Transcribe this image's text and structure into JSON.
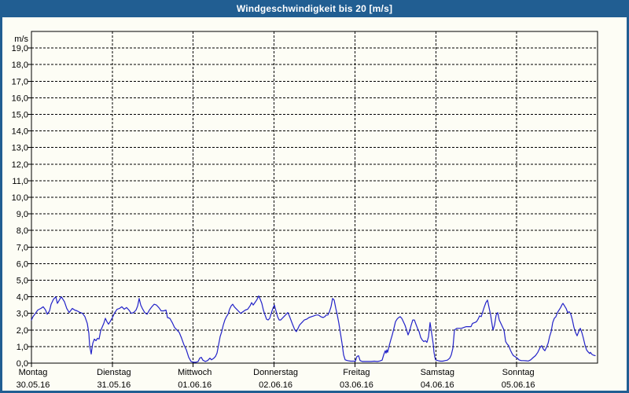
{
  "window": {
    "title": "Windgeschwindigkeit bis 20 [m/s]"
  },
  "colors": {
    "titlebar_bg": "#215e92",
    "window_border": "#215e92",
    "page_bg": "#fdfdf5",
    "grid": "#000000",
    "text": "#000000",
    "series_line": "#2222c8"
  },
  "chart_data": {
    "type": "line",
    "title": "Windgeschwindigkeit bis 20 [m/s]",
    "xlabel": "",
    "ylabel": "m/s",
    "ylim": [
      0,
      20
    ],
    "grid": "dashed",
    "legend": "none",
    "y_tick_labels": [
      "0,0",
      "1,0",
      "2,0",
      "3,0",
      "4,0",
      "5,0",
      "6,0",
      "7,0",
      "8,0",
      "9,0",
      "10,0",
      "11,0",
      "12,0",
      "13,0",
      "14,0",
      "15,0",
      "16,0",
      "17,0",
      "18,0",
      "19,0"
    ],
    "x_days": [
      {
        "name": "Montag",
        "date": "30.05.16"
      },
      {
        "name": "Dienstag",
        "date": "31.05.16"
      },
      {
        "name": "Mittwoch",
        "date": "01.06.16"
      },
      {
        "name": "Donnerstag",
        "date": "02.06.16"
      },
      {
        "name": "Freitag",
        "date": "03.06.16"
      },
      {
        "name": "Samstag",
        "date": "04.06.16"
      },
      {
        "name": "Sonntag",
        "date": "05.06.16"
      }
    ],
    "series": [
      {
        "name": "Windgeschwindigkeit",
        "unit": "m/s",
        "x_unit": "days since 30.05.16 00:00",
        "points": [
          [
            0.0,
            2.6
          ],
          [
            0.019,
            2.8
          ],
          [
            0.049,
            3.0
          ],
          [
            0.078,
            3.2
          ],
          [
            0.117,
            3.3
          ],
          [
            0.146,
            3.4
          ],
          [
            0.175,
            3.2
          ],
          [
            0.194,
            2.95
          ],
          [
            0.224,
            3.15
          ],
          [
            0.243,
            3.55
          ],
          [
            0.272,
            3.85
          ],
          [
            0.301,
            4.0
          ],
          [
            0.321,
            3.6
          ],
          [
            0.35,
            3.85
          ],
          [
            0.369,
            4.0
          ],
          [
            0.408,
            3.7
          ],
          [
            0.437,
            3.3
          ],
          [
            0.467,
            3.05
          ],
          [
            0.506,
            3.3
          ],
          [
            0.535,
            3.2
          ],
          [
            0.564,
            3.15
          ],
          [
            0.603,
            3.05
          ],
          [
            0.632,
            3.0
          ],
          [
            0.661,
            2.8
          ],
          [
            0.69,
            2.4
          ],
          [
            0.71,
            1.8
          ],
          [
            0.719,
            1.05
          ],
          [
            0.739,
            0.55
          ],
          [
            0.749,
            0.9
          ],
          [
            0.758,
            1.2
          ],
          [
            0.778,
            1.45
          ],
          [
            0.797,
            1.35
          ],
          [
            0.817,
            1.5
          ],
          [
            0.836,
            1.45
          ],
          [
            0.856,
            1.95
          ],
          [
            0.894,
            2.4
          ],
          [
            0.914,
            2.7
          ],
          [
            0.933,
            2.5
          ],
          [
            0.953,
            2.35
          ],
          [
            0.972,
            2.5
          ],
          [
            1.001,
            2.75
          ],
          [
            1.031,
            3.05
          ],
          [
            1.06,
            3.25
          ],
          [
            1.089,
            3.3
          ],
          [
            1.118,
            3.4
          ],
          [
            1.147,
            3.25
          ],
          [
            1.176,
            3.35
          ],
          [
            1.206,
            3.2
          ],
          [
            1.235,
            3.0
          ],
          [
            1.264,
            3.05
          ],
          [
            1.293,
            3.2
          ],
          [
            1.313,
            3.45
          ],
          [
            1.332,
            3.9
          ],
          [
            1.351,
            3.5
          ],
          [
            1.371,
            3.3
          ],
          [
            1.4,
            3.05
          ],
          [
            1.429,
            2.95
          ],
          [
            1.458,
            3.2
          ],
          [
            1.488,
            3.4
          ],
          [
            1.517,
            3.55
          ],
          [
            1.546,
            3.5
          ],
          [
            1.575,
            3.35
          ],
          [
            1.604,
            3.15
          ],
          [
            1.633,
            3.15
          ],
          [
            1.663,
            3.2
          ],
          [
            1.682,
            2.75
          ],
          [
            1.711,
            2.7
          ],
          [
            1.74,
            2.45
          ],
          [
            1.769,
            2.15
          ],
          [
            1.799,
            2.0
          ],
          [
            1.828,
            1.85
          ],
          [
            1.857,
            1.5
          ],
          [
            1.886,
            1.1
          ],
          [
            1.915,
            0.8
          ],
          [
            1.944,
            0.35
          ],
          [
            1.974,
            0.1
          ],
          [
            2.003,
            0.05
          ],
          [
            2.032,
            0.05
          ],
          [
            2.061,
            0.1
          ],
          [
            2.081,
            0.3
          ],
          [
            2.1,
            0.35
          ],
          [
            2.119,
            0.18
          ],
          [
            2.149,
            0.1
          ],
          [
            2.178,
            0.15
          ],
          [
            2.207,
            0.3
          ],
          [
            2.226,
            0.2
          ],
          [
            2.256,
            0.3
          ],
          [
            2.275,
            0.4
          ],
          [
            2.294,
            0.6
          ],
          [
            2.314,
            1.1
          ],
          [
            2.333,
            1.6
          ],
          [
            2.353,
            1.9
          ],
          [
            2.372,
            2.3
          ],
          [
            2.392,
            2.6
          ],
          [
            2.411,
            2.8
          ],
          [
            2.431,
            2.95
          ],
          [
            2.45,
            3.25
          ],
          [
            2.469,
            3.45
          ],
          [
            2.489,
            3.55
          ],
          [
            2.508,
            3.4
          ],
          [
            2.528,
            3.3
          ],
          [
            2.557,
            3.15
          ],
          [
            2.586,
            3.0
          ],
          [
            2.615,
            3.1
          ],
          [
            2.644,
            3.2
          ],
          [
            2.674,
            3.25
          ],
          [
            2.703,
            3.45
          ],
          [
            2.722,
            3.65
          ],
          [
            2.742,
            3.5
          ],
          [
            2.771,
            3.7
          ],
          [
            2.79,
            3.85
          ],
          [
            2.81,
            4.05
          ],
          [
            2.829,
            3.85
          ],
          [
            2.849,
            3.6
          ],
          [
            2.868,
            3.2
          ],
          [
            2.888,
            2.9
          ],
          [
            2.907,
            2.65
          ],
          [
            2.926,
            2.6
          ],
          [
            2.946,
            2.7
          ],
          [
            2.965,
            3.0
          ],
          [
            2.985,
            3.3
          ],
          [
            3.004,
            3.5
          ],
          [
            3.024,
            3.15
          ],
          [
            3.043,
            2.8
          ],
          [
            3.063,
            2.6
          ],
          [
            3.082,
            2.6
          ],
          [
            3.101,
            2.7
          ],
          [
            3.121,
            2.8
          ],
          [
            3.15,
            2.95
          ],
          [
            3.169,
            3.05
          ],
          [
            3.189,
            2.85
          ],
          [
            3.208,
            2.6
          ],
          [
            3.228,
            2.35
          ],
          [
            3.257,
            2.0
          ],
          [
            3.276,
            1.9
          ],
          [
            3.296,
            2.1
          ],
          [
            3.315,
            2.3
          ],
          [
            3.344,
            2.45
          ],
          [
            3.374,
            2.6
          ],
          [
            3.403,
            2.65
          ],
          [
            3.432,
            2.75
          ],
          [
            3.461,
            2.8
          ],
          [
            3.49,
            2.85
          ],
          [
            3.519,
            2.9
          ],
          [
            3.549,
            2.9
          ],
          [
            3.578,
            2.8
          ],
          [
            3.607,
            2.75
          ],
          [
            3.626,
            2.8
          ],
          [
            3.646,
            2.9
          ],
          [
            3.665,
            2.9
          ],
          [
            3.685,
            3.1
          ],
          [
            3.704,
            3.4
          ],
          [
            3.724,
            3.9
          ],
          [
            3.743,
            3.8
          ],
          [
            3.763,
            3.3
          ],
          [
            3.782,
            2.9
          ],
          [
            3.801,
            2.4
          ],
          [
            3.821,
            1.8
          ],
          [
            3.84,
            1.2
          ],
          [
            3.86,
            0.5
          ],
          [
            3.879,
            0.2
          ],
          [
            3.908,
            0.15
          ],
          [
            3.947,
            0.12
          ],
          [
            3.986,
            0.12
          ],
          [
            4.006,
            0.12
          ],
          [
            4.025,
            0.4
          ],
          [
            4.044,
            0.45
          ],
          [
            4.064,
            0.15
          ],
          [
            4.093,
            0.1
          ],
          [
            4.122,
            0.1
          ],
          [
            4.161,
            0.1
          ],
          [
            4.2,
            0.1
          ],
          [
            4.239,
            0.12
          ],
          [
            4.278,
            0.1
          ],
          [
            4.307,
            0.13
          ],
          [
            4.336,
            0.18
          ],
          [
            4.356,
            0.5
          ],
          [
            4.375,
            0.75
          ],
          [
            4.385,
            0.6
          ],
          [
            4.394,
            0.8
          ],
          [
            4.404,
            0.65
          ],
          [
            4.424,
            1.05
          ],
          [
            4.443,
            1.4
          ],
          [
            4.462,
            1.7
          ],
          [
            4.482,
            2.1
          ],
          [
            4.501,
            2.5
          ],
          [
            4.521,
            2.65
          ],
          [
            4.54,
            2.75
          ],
          [
            4.56,
            2.8
          ],
          [
            4.579,
            2.7
          ],
          [
            4.599,
            2.5
          ],
          [
            4.618,
            2.3
          ],
          [
            4.638,
            2.0
          ],
          [
            4.657,
            1.7
          ],
          [
            4.676,
            1.95
          ],
          [
            4.696,
            2.3
          ],
          [
            4.715,
            2.6
          ],
          [
            4.735,
            2.6
          ],
          [
            4.754,
            2.35
          ],
          [
            4.774,
            2.1
          ],
          [
            4.793,
            1.9
          ],
          [
            4.813,
            1.55
          ],
          [
            4.832,
            1.4
          ],
          [
            4.851,
            1.3
          ],
          [
            4.871,
            1.35
          ],
          [
            4.89,
            1.25
          ],
          [
            4.91,
            1.6
          ],
          [
            4.929,
            2.45
          ],
          [
            4.949,
            1.8
          ],
          [
            4.968,
            1.15
          ],
          [
            4.978,
            0.65
          ],
          [
            4.988,
            0.35
          ],
          [
            4.997,
            0.2
          ],
          [
            5.026,
            0.15
          ],
          [
            5.056,
            0.12
          ],
          [
            5.085,
            0.12
          ],
          [
            5.114,
            0.15
          ],
          [
            5.143,
            0.18
          ],
          [
            5.172,
            0.3
          ],
          [
            5.192,
            0.5
          ],
          [
            5.211,
            0.9
          ],
          [
            5.231,
            2.0
          ],
          [
            5.26,
            2.1
          ],
          [
            5.289,
            2.1
          ],
          [
            5.318,
            2.1
          ],
          [
            5.347,
            2.15
          ],
          [
            5.376,
            2.2
          ],
          [
            5.406,
            2.2
          ],
          [
            5.435,
            2.2
          ],
          [
            5.454,
            2.4
          ],
          [
            5.483,
            2.45
          ],
          [
            5.503,
            2.5
          ],
          [
            5.522,
            2.65
          ],
          [
            5.542,
            2.85
          ],
          [
            5.561,
            2.8
          ],
          [
            5.581,
            3.1
          ],
          [
            5.6,
            3.4
          ],
          [
            5.619,
            3.65
          ],
          [
            5.639,
            3.8
          ],
          [
            5.658,
            3.35
          ],
          [
            5.678,
            2.9
          ],
          [
            5.697,
            2.3
          ],
          [
            5.707,
            2.0
          ],
          [
            5.726,
            2.3
          ],
          [
            5.746,
            2.9
          ],
          [
            5.765,
            3.05
          ],
          [
            5.785,
            2.6
          ],
          [
            5.804,
            2.4
          ],
          [
            5.824,
            2.2
          ],
          [
            5.843,
            2.0
          ],
          [
            5.863,
            1.3
          ],
          [
            5.882,
            1.15
          ],
          [
            5.901,
            1.05
          ],
          [
            5.921,
            0.8
          ],
          [
            5.94,
            0.6
          ],
          [
            5.96,
            0.45
          ],
          [
            5.979,
            0.4
          ],
          [
            5.999,
            0.32
          ],
          [
            6.008,
            0.3
          ],
          [
            6.028,
            0.2
          ],
          [
            6.057,
            0.15
          ],
          [
            6.086,
            0.15
          ],
          [
            6.115,
            0.14
          ],
          [
            6.144,
            0.13
          ],
          [
            6.174,
            0.2
          ],
          [
            6.203,
            0.33
          ],
          [
            6.232,
            0.45
          ],
          [
            6.261,
            0.65
          ],
          [
            6.29,
            0.95
          ],
          [
            6.31,
            1.05
          ],
          [
            6.329,
            0.85
          ],
          [
            6.349,
            0.75
          ],
          [
            6.368,
            0.95
          ],
          [
            6.388,
            1.2
          ],
          [
            6.407,
            1.6
          ],
          [
            6.426,
            1.9
          ],
          [
            6.446,
            2.45
          ],
          [
            6.465,
            2.7
          ],
          [
            6.485,
            2.8
          ],
          [
            6.504,
            3.05
          ],
          [
            6.524,
            3.2
          ],
          [
            6.543,
            3.35
          ],
          [
            6.563,
            3.55
          ],
          [
            6.572,
            3.6
          ],
          [
            6.592,
            3.45
          ],
          [
            6.611,
            3.3
          ],
          [
            6.631,
            3.05
          ],
          [
            6.65,
            3.1
          ],
          [
            6.669,
            2.95
          ],
          [
            6.689,
            2.6
          ],
          [
            6.708,
            2.15
          ],
          [
            6.728,
            1.85
          ],
          [
            6.747,
            1.65
          ],
          [
            6.767,
            1.9
          ],
          [
            6.786,
            2.1
          ],
          [
            6.806,
            1.85
          ],
          [
            6.825,
            1.5
          ],
          [
            6.844,
            1.1
          ],
          [
            6.864,
            0.8
          ],
          [
            6.883,
            0.68
          ],
          [
            6.903,
            0.58
          ],
          [
            6.912,
            0.65
          ],
          [
            6.932,
            0.52
          ],
          [
            6.951,
            0.48
          ],
          [
            6.971,
            0.45
          ]
        ]
      }
    ]
  }
}
